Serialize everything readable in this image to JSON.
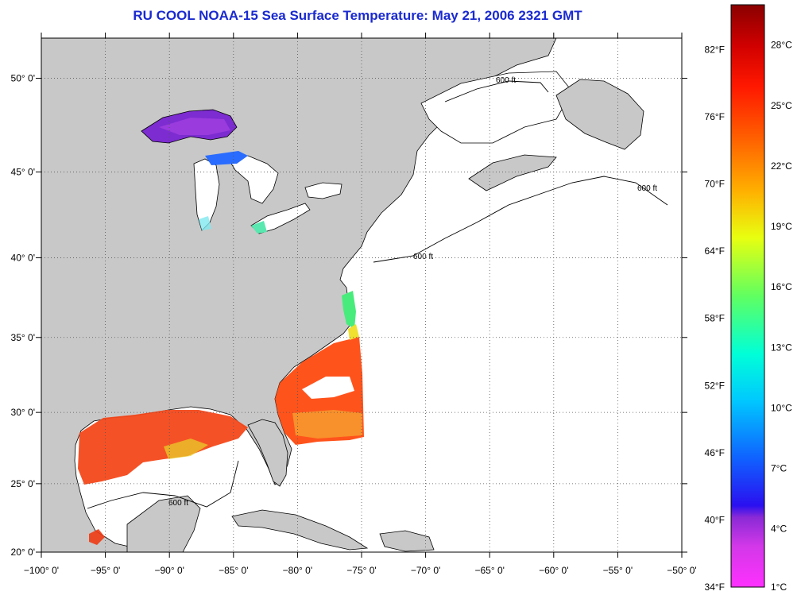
{
  "title": "RU COOL  NOAA-15  Sea Surface Temperature:  May 21, 2006 2321 GMT",
  "colors": {
    "title": "#1a2ad0",
    "land": "#c8c8c8",
    "water": "#ffffff"
  },
  "map": {
    "lon_range": [
      -100,
      -50
    ],
    "lat_range": [
      20,
      52
    ],
    "x_tick_labels": [
      "−100° 0'",
      "−95° 0'",
      "−90° 0'",
      "−85° 0'",
      "−80° 0'",
      "−75° 0'",
      "−70° 0'",
      "−65° 0'",
      "−60° 0'",
      "−55° 0'",
      "−50° 0'"
    ],
    "y_tick_labels": [
      "20° 0'",
      "25° 0'",
      "30° 0'",
      "35° 0'",
      "40° 0'",
      "45° 0'",
      "50° 0'"
    ],
    "grid": "dotted",
    "contour_label": "600 ft"
  },
  "colorbar": {
    "fahrenheit": [
      "82°F",
      "76°F",
      "70°F",
      "64°F",
      "58°F",
      "52°F",
      "46°F",
      "40°F",
      "34°F"
    ],
    "celsius": [
      "28°C",
      "25°C",
      "22°C",
      "19°C",
      "16°C",
      "13°C",
      "10°C",
      "7°C",
      "4°C",
      "1°C"
    ]
  }
}
